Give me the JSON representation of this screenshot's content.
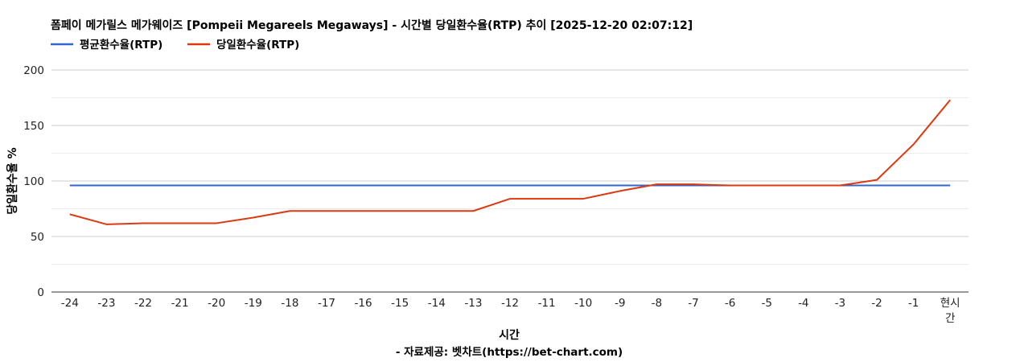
{
  "chart_data": {
    "type": "line",
    "title": "폼페이 메가릴스 메가웨이즈 [Pompeii Megareels Megaways] - 시간별 당일환수율(RTP) 추이 [2025-12-20 02:07:12]",
    "xlabel": "시간",
    "ylabel": "당일환수율 %",
    "source": "- 자료제공: 벳차트(https://bet-chart.com)",
    "categories": [
      "-24",
      "-23",
      "-22",
      "-21",
      "-20",
      "-19",
      "-18",
      "-17",
      "-16",
      "-15",
      "-14",
      "-13",
      "-12",
      "-11",
      "-10",
      "-9",
      "-8",
      "-7",
      "-6",
      "-5",
      "-4",
      "-3",
      "-2",
      "-1",
      "현시간"
    ],
    "ylim": [
      0,
      200
    ],
    "yticks": [
      0,
      50,
      100,
      150,
      200
    ],
    "grid": true,
    "legend_position": "top-left",
    "series": [
      {
        "name": "평균환수율(RTP)",
        "color": "#3366cc",
        "values": [
          96,
          96,
          96,
          96,
          96,
          96,
          96,
          96,
          96,
          96,
          96,
          96,
          96,
          96,
          96,
          96,
          96,
          96,
          96,
          96,
          96,
          96,
          96,
          96,
          96
        ]
      },
      {
        "name": "당일환수율(RTP)",
        "color": "#dc3912",
        "values": [
          70,
          61,
          62,
          62,
          62,
          67,
          73,
          73,
          73,
          73,
          73,
          73,
          84,
          84,
          84,
          91,
          97,
          97,
          96,
          96,
          96,
          96,
          101,
          133,
          173
        ]
      }
    ]
  }
}
